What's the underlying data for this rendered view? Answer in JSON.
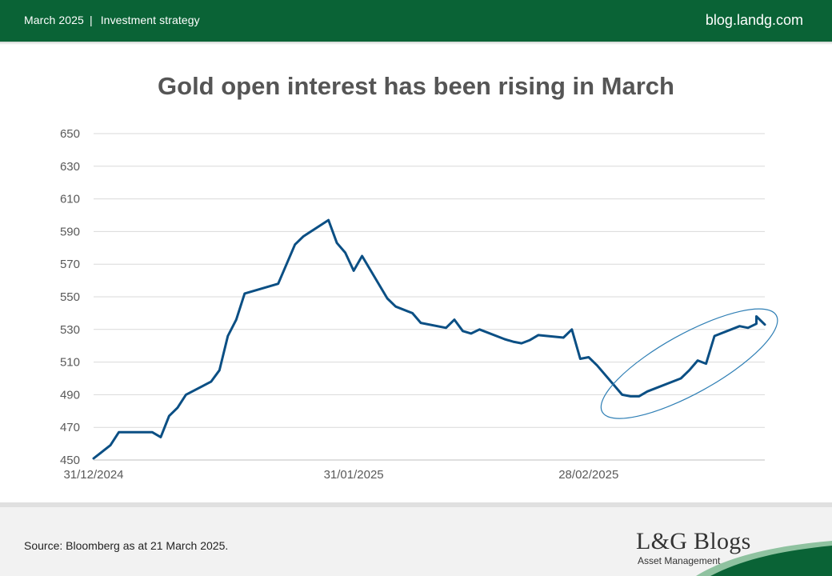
{
  "header": {
    "date": "March 2025",
    "separator": "|",
    "category": "Investment strategy",
    "site": "blog.landg.com"
  },
  "footer": {
    "source": "Source: Bloomberg as at 21 March 2025.",
    "logo_main": "L&G Blogs",
    "logo_sub": "Asset Management"
  },
  "colors": {
    "header_bg": "#0a6336",
    "line": "#0b4f84",
    "highlight_ellipse": "#2f7fb5"
  },
  "chart_data": {
    "type": "line",
    "title": "Gold open interest has been rising in March",
    "xlabel": "",
    "ylabel": "",
    "x_range": [
      "2024-12-31",
      "2025-03-21"
    ],
    "xticks": [
      {
        "date": "2024-12-31",
        "label": "31/12/2024"
      },
      {
        "date": "2025-01-31",
        "label": "31/01/2025"
      },
      {
        "date": "2025-02-28",
        "label": "28/02/2025"
      }
    ],
    "ylim": [
      450,
      650
    ],
    "yticks": [
      450,
      470,
      490,
      510,
      530,
      550,
      570,
      590,
      610,
      630,
      650
    ],
    "grid": "horizontal",
    "legend": "none",
    "series": [
      {
        "name": "",
        "points": [
          [
            "2024-12-31",
            451
          ],
          [
            "2025-01-02",
            459
          ],
          [
            "2025-01-03",
            467
          ],
          [
            "2025-01-06",
            467
          ],
          [
            "2025-01-07",
            467
          ],
          [
            "2025-01-08",
            464
          ],
          [
            "2025-01-09",
            477
          ],
          [
            "2025-01-10",
            482
          ],
          [
            "2025-01-11",
            490
          ],
          [
            "2025-01-14",
            498
          ],
          [
            "2025-01-15",
            505
          ],
          [
            "2025-01-16",
            526
          ],
          [
            "2025-01-17",
            536
          ],
          [
            "2025-01-18",
            552
          ],
          [
            "2025-01-22",
            558
          ],
          [
            "2025-01-23",
            570
          ],
          [
            "2025-01-24",
            582
          ],
          [
            "2025-01-25",
            587
          ],
          [
            "2025-01-28",
            597
          ],
          [
            "2025-01-29",
            583
          ],
          [
            "2025-01-30",
            577
          ],
          [
            "2025-01-31",
            566
          ],
          [
            "2025-02-01",
            575
          ],
          [
            "2025-02-04",
            549
          ],
          [
            "2025-02-05",
            544
          ],
          [
            "2025-02-07",
            540
          ],
          [
            "2025-02-08",
            534
          ],
          [
            "2025-02-11",
            531
          ],
          [
            "2025-02-12",
            536
          ],
          [
            "2025-02-13",
            529
          ],
          [
            "2025-02-14",
            527.5
          ],
          [
            "2025-02-15",
            530
          ],
          [
            "2025-02-18",
            524
          ],
          [
            "2025-02-19",
            522.5
          ],
          [
            "2025-02-20",
            521.5
          ],
          [
            "2025-02-21",
            523.5
          ],
          [
            "2025-02-22",
            526.5
          ],
          [
            "2025-02-25",
            525
          ],
          [
            "2025-02-26",
            530
          ],
          [
            "2025-02-27",
            512
          ],
          [
            "2025-02-28",
            513
          ],
          [
            "2025-03-01",
            508
          ],
          [
            "2025-03-04",
            490
          ],
          [
            "2025-03-05",
            489
          ],
          [
            "2025-03-06",
            489
          ],
          [
            "2025-03-07",
            492
          ],
          [
            "2025-03-11",
            500
          ],
          [
            "2025-03-12",
            505
          ],
          [
            "2025-03-13",
            511
          ],
          [
            "2025-03-14",
            509
          ],
          [
            "2025-03-15",
            526
          ],
          [
            "2025-03-18",
            532
          ],
          [
            "2025-03-19",
            531
          ],
          [
            "2025-03-20",
            533.5
          ],
          [
            "2025-03-20",
            538
          ],
          [
            "2025-03-21",
            533
          ]
        ]
      }
    ],
    "annotations": [
      {
        "type": "ellipse",
        "from": "2025-03-03",
        "to": "2025-03-21",
        "y_from": 482,
        "y_to": 536
      }
    ]
  }
}
